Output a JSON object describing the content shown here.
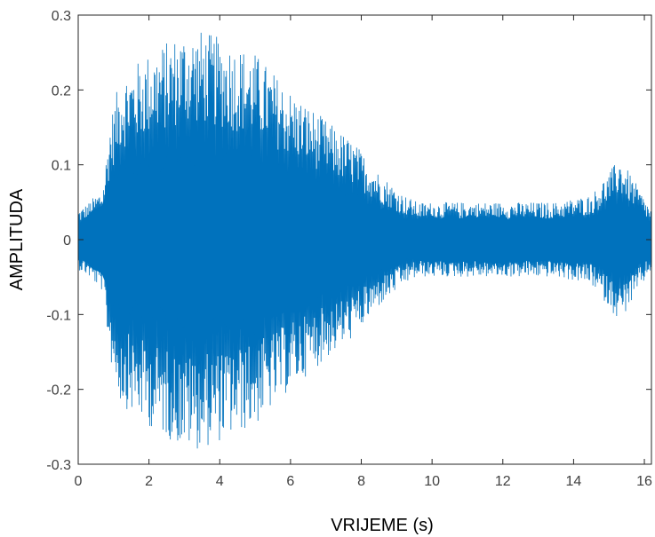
{
  "chart_data": {
    "type": "line",
    "title": "",
    "xlabel": "VRIJEME (s)",
    "ylabel": "AMPLITUDA",
    "xlim": [
      0,
      16.2
    ],
    "ylim": [
      -0.3,
      0.3
    ],
    "xticks": [
      0,
      2,
      4,
      6,
      8,
      10,
      12,
      14,
      16
    ],
    "xtick_labels": [
      "0",
      "2",
      "4",
      "6",
      "8",
      "10",
      "12",
      "14",
      "16"
    ],
    "yticks": [
      -0.3,
      -0.2,
      -0.1,
      0,
      0.1,
      0.2,
      0.3
    ],
    "ytick_labels": [
      "-0.3",
      "-0.2",
      "-0.1",
      "0",
      "0.1",
      "0.2",
      "0.3"
    ],
    "grid": false,
    "legend": "none",
    "color": "#0072BD",
    "envelope": {
      "t": [
        0.0,
        0.3,
        0.7,
        0.9,
        1.2,
        2.0,
        3.0,
        3.5,
        4.0,
        5.0,
        6.0,
        7.0,
        7.8,
        8.5,
        9.2,
        9.6,
        10.5,
        11.5,
        12.5,
        13.5,
        14.5,
        15.0,
        15.3,
        15.7,
        16.2
      ],
      "peak": [
        0.04,
        0.05,
        0.07,
        0.16,
        0.22,
        0.25,
        0.28,
        0.28,
        0.27,
        0.25,
        0.2,
        0.16,
        0.13,
        0.09,
        0.06,
        0.05,
        0.05,
        0.05,
        0.05,
        0.05,
        0.06,
        0.09,
        0.11,
        0.08,
        0.04
      ],
      "dense": [
        0.02,
        0.03,
        0.05,
        0.08,
        0.09,
        0.1,
        0.11,
        0.11,
        0.11,
        0.11,
        0.09,
        0.07,
        0.06,
        0.04,
        0.03,
        0.03,
        0.03,
        0.03,
        0.03,
        0.03,
        0.03,
        0.04,
        0.05,
        0.04,
        0.02
      ]
    }
  }
}
